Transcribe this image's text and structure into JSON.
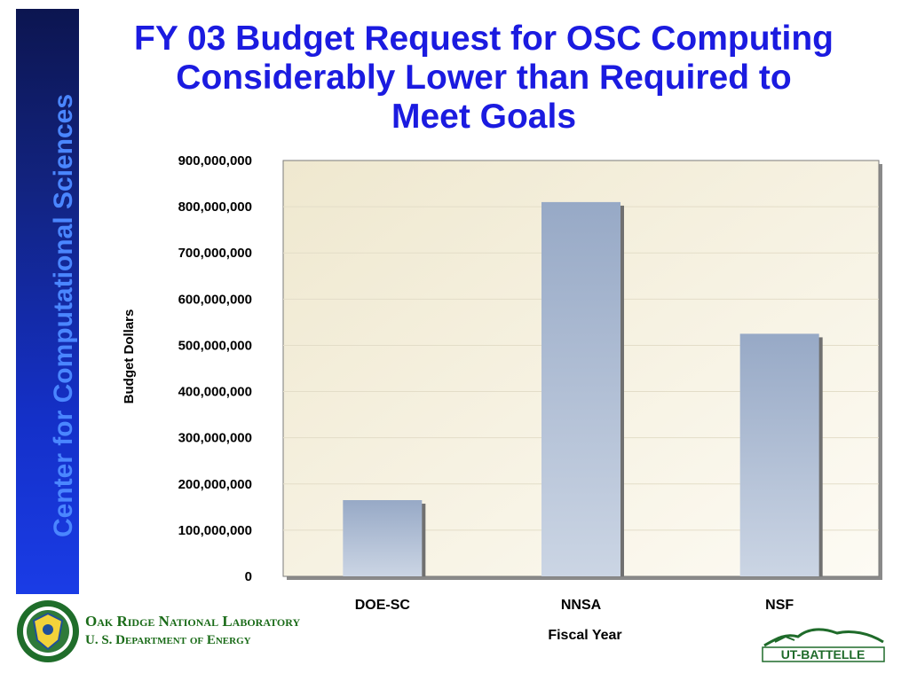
{
  "sidebar": {
    "label": "Center for Computational Sciences"
  },
  "slide": {
    "title": "FY 03 Budget Request for OSC Computing Considerably Lower than Required to Meet Goals"
  },
  "footer": {
    "lab_name": "Oak Ridge National Laboratory",
    "department": "U. S. Department of Energy",
    "partner_logo_text": "UT-BATTELLE"
  },
  "colors": {
    "title": "#1b1be0",
    "sidebar_text": "#4a86ff",
    "bar_top": "#97a9c6",
    "bar_bottom": "#cbd5e4",
    "lab_text": "#1a6b18"
  },
  "chart_data": {
    "type": "bar",
    "title": "",
    "xlabel": "Fiscal Year",
    "ylabel": "Budget Dollars",
    "categories": [
      "DOE-SC",
      "NNSA",
      "NSF"
    ],
    "values": [
      165000000,
      810000000,
      525000000
    ],
    "ylim": [
      0,
      900000000
    ],
    "yticks": [
      0,
      100000000,
      200000000,
      300000000,
      400000000,
      500000000,
      600000000,
      700000000,
      800000000,
      900000000
    ],
    "ytick_labels": [
      "0",
      "100,000,000",
      "200,000,000",
      "300,000,000",
      "400,000,000",
      "500,000,000",
      "600,000,000",
      "700,000,000",
      "800,000,000",
      "900,000,000"
    ],
    "grid": true,
    "legend": "none"
  }
}
